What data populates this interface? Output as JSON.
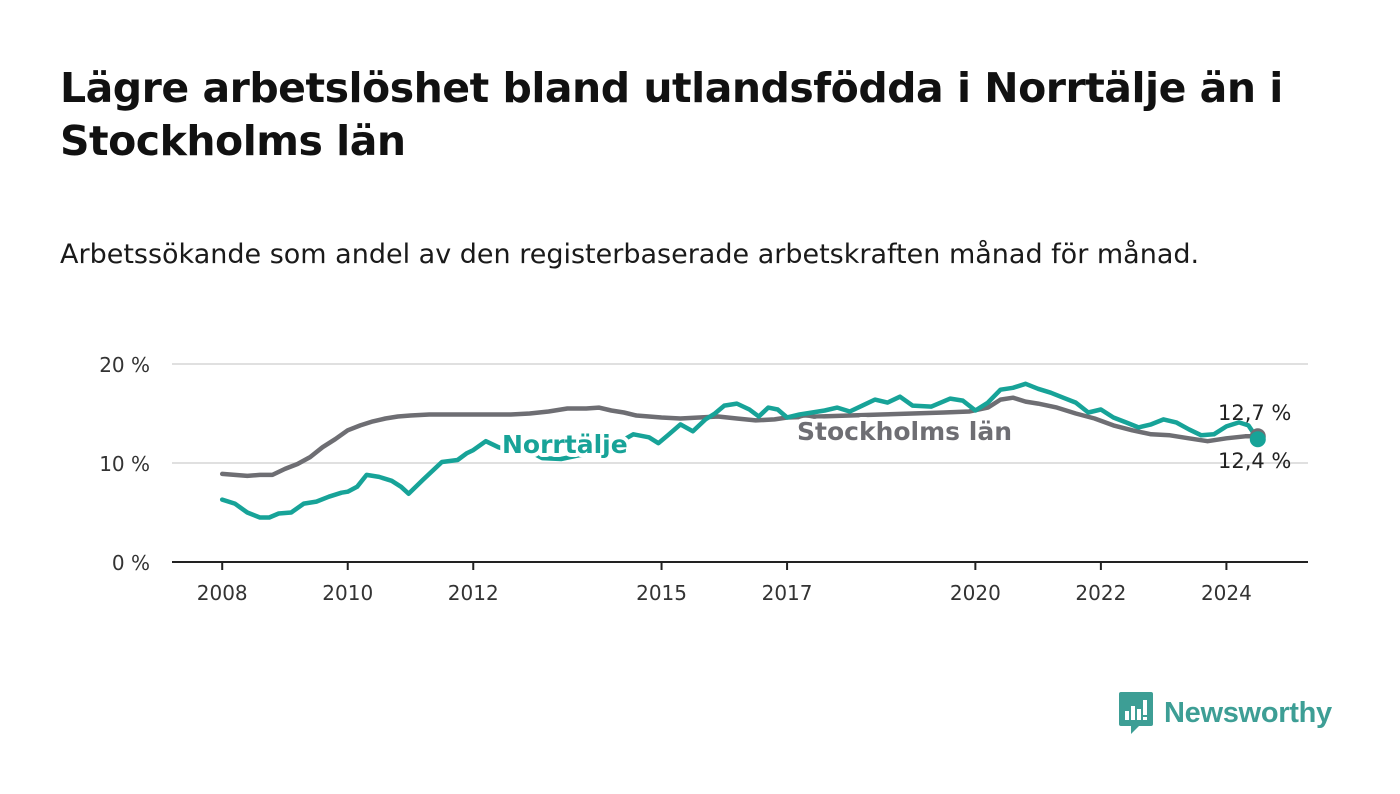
{
  "title": "Lägre arbetslöshet bland utlandsfödda i Norrtälje än i Stockholms län",
  "subtitle": "Arbetssökande som andel av den registerbaserade arbetskraften månad för månad.",
  "brand": {
    "name": "Newsworthy",
    "color": "#3d9e95"
  },
  "colors": {
    "norrtalje": "#17a398",
    "stockholm": "#6e6e73",
    "grid": "#d6d6d6",
    "axis": "#222222"
  },
  "chart_data": {
    "type": "line",
    "title": "Lägre arbetslöshet bland utlandsfödda i Norrtälje än i Stockholms län",
    "subtitle": "Arbetssökande som andel av den registerbaserade arbetskraften månad för månad.",
    "xlabel": "",
    "ylabel": "",
    "ylim": [
      0,
      20
    ],
    "xlim": [
      2007.2,
      2025.3
    ],
    "y_ticks": [
      {
        "value": 0,
        "label": "0 %"
      },
      {
        "value": 10,
        "label": "10 %"
      },
      {
        "value": 20,
        "label": "20 %"
      }
    ],
    "x_ticks": [
      {
        "value": 2008,
        "label": "2008"
      },
      {
        "value": 2010,
        "label": "2010"
      },
      {
        "value": 2012,
        "label": "2012"
      },
      {
        "value": 2015,
        "label": "2015"
      },
      {
        "value": 2017,
        "label": "2017"
      },
      {
        "value": 2020,
        "label": "2020"
      },
      {
        "value": 2022,
        "label": "2022"
      },
      {
        "value": 2024,
        "label": "2024"
      }
    ],
    "grid": true,
    "series": [
      {
        "name": "Norrtälje",
        "color": "#17a398",
        "end_label": "12,4 %",
        "points": [
          [
            2008.0,
            6.3
          ],
          [
            2008.2,
            5.9
          ],
          [
            2008.4,
            5.0
          ],
          [
            2008.6,
            4.5
          ],
          [
            2008.75,
            4.5
          ],
          [
            2008.9,
            4.9
          ],
          [
            2009.1,
            5.0
          ],
          [
            2009.3,
            5.9
          ],
          [
            2009.5,
            6.1
          ],
          [
            2009.7,
            6.6
          ],
          [
            2009.9,
            7.0
          ],
          [
            2010.0,
            7.1
          ],
          [
            2010.15,
            7.6
          ],
          [
            2010.3,
            8.8
          ],
          [
            2010.5,
            8.6
          ],
          [
            2010.7,
            8.2
          ],
          [
            2010.85,
            7.6
          ],
          [
            2010.97,
            6.9
          ],
          [
            2011.2,
            8.3
          ],
          [
            2011.5,
            10.1
          ],
          [
            2011.75,
            10.3
          ],
          [
            2011.9,
            11.0
          ],
          [
            2012.0,
            11.3
          ],
          [
            2012.2,
            12.2
          ],
          [
            2012.4,
            11.6
          ],
          [
            2012.6,
            11.2
          ],
          [
            2012.8,
            11.3
          ],
          [
            2012.95,
            11.0
          ],
          [
            2013.1,
            10.5
          ],
          [
            2013.4,
            10.4
          ],
          [
            2013.7,
            10.8
          ],
          [
            2014.0,
            11.1
          ],
          [
            2014.3,
            12.0
          ],
          [
            2014.55,
            12.9
          ],
          [
            2014.8,
            12.6
          ],
          [
            2014.95,
            12.0
          ],
          [
            2015.1,
            12.8
          ],
          [
            2015.3,
            13.9
          ],
          [
            2015.5,
            13.2
          ],
          [
            2015.7,
            14.4
          ],
          [
            2015.85,
            15.0
          ],
          [
            2016.0,
            15.8
          ],
          [
            2016.2,
            16.0
          ],
          [
            2016.4,
            15.4
          ],
          [
            2016.55,
            14.7
          ],
          [
            2016.7,
            15.6
          ],
          [
            2016.85,
            15.4
          ],
          [
            2017.0,
            14.6
          ],
          [
            2017.2,
            14.9
          ],
          [
            2017.4,
            15.1
          ],
          [
            2017.6,
            15.3
          ],
          [
            2017.8,
            15.6
          ],
          [
            2018.0,
            15.2
          ],
          [
            2018.2,
            15.8
          ],
          [
            2018.4,
            16.4
          ],
          [
            2018.6,
            16.1
          ],
          [
            2018.8,
            16.7
          ],
          [
            2019.0,
            15.8
          ],
          [
            2019.3,
            15.7
          ],
          [
            2019.6,
            16.5
          ],
          [
            2019.8,
            16.3
          ],
          [
            2020.0,
            15.3
          ],
          [
            2020.2,
            16.1
          ],
          [
            2020.4,
            17.4
          ],
          [
            2020.6,
            17.6
          ],
          [
            2020.8,
            18.0
          ],
          [
            2021.0,
            17.5
          ],
          [
            2021.2,
            17.1
          ],
          [
            2021.4,
            16.6
          ],
          [
            2021.6,
            16.1
          ],
          [
            2021.8,
            15.1
          ],
          [
            2022.0,
            15.4
          ],
          [
            2022.2,
            14.6
          ],
          [
            2022.4,
            14.1
          ],
          [
            2022.6,
            13.6
          ],
          [
            2022.8,
            13.9
          ],
          [
            2023.0,
            14.4
          ],
          [
            2023.2,
            14.1
          ],
          [
            2023.4,
            13.4
          ],
          [
            2023.6,
            12.8
          ],
          [
            2023.8,
            12.9
          ],
          [
            2024.0,
            13.7
          ],
          [
            2024.2,
            14.1
          ],
          [
            2024.35,
            13.8
          ],
          [
            2024.5,
            12.4
          ]
        ]
      },
      {
        "name": "Stockholms län",
        "color": "#6e6e73",
        "end_label": "12,7 %",
        "points": [
          [
            2008.0,
            8.9
          ],
          [
            2008.2,
            8.8
          ],
          [
            2008.4,
            8.7
          ],
          [
            2008.6,
            8.8
          ],
          [
            2008.8,
            8.8
          ],
          [
            2009.0,
            9.4
          ],
          [
            2009.2,
            9.9
          ],
          [
            2009.4,
            10.6
          ],
          [
            2009.6,
            11.6
          ],
          [
            2009.8,
            12.4
          ],
          [
            2010.0,
            13.3
          ],
          [
            2010.2,
            13.8
          ],
          [
            2010.4,
            14.2
          ],
          [
            2010.6,
            14.5
          ],
          [
            2010.8,
            14.7
          ],
          [
            2011.0,
            14.8
          ],
          [
            2011.3,
            14.9
          ],
          [
            2011.6,
            14.9
          ],
          [
            2011.9,
            14.9
          ],
          [
            2012.0,
            14.9
          ],
          [
            2012.3,
            14.9
          ],
          [
            2012.6,
            14.9
          ],
          [
            2012.9,
            15.0
          ],
          [
            2013.2,
            15.2
          ],
          [
            2013.5,
            15.5
          ],
          [
            2013.8,
            15.5
          ],
          [
            2014.0,
            15.6
          ],
          [
            2014.2,
            15.3
          ],
          [
            2014.4,
            15.1
          ],
          [
            2014.6,
            14.8
          ],
          [
            2014.8,
            14.7
          ],
          [
            2015.0,
            14.6
          ],
          [
            2015.3,
            14.5
          ],
          [
            2015.6,
            14.6
          ],
          [
            2015.9,
            14.7
          ],
          [
            2016.2,
            14.5
          ],
          [
            2016.5,
            14.3
          ],
          [
            2016.8,
            14.4
          ],
          [
            2017.0,
            14.6
          ],
          [
            2017.5,
            14.7
          ],
          [
            2018.0,
            14.8
          ],
          [
            2018.5,
            14.9
          ],
          [
            2019.0,
            15.0
          ],
          [
            2019.5,
            15.1
          ],
          [
            2019.9,
            15.2
          ],
          [
            2020.2,
            15.6
          ],
          [
            2020.4,
            16.4
          ],
          [
            2020.6,
            16.6
          ],
          [
            2020.8,
            16.2
          ],
          [
            2021.0,
            16.0
          ],
          [
            2021.3,
            15.6
          ],
          [
            2021.6,
            15.0
          ],
          [
            2021.9,
            14.5
          ],
          [
            2022.2,
            13.8
          ],
          [
            2022.5,
            13.3
          ],
          [
            2022.8,
            12.9
          ],
          [
            2023.1,
            12.8
          ],
          [
            2023.4,
            12.5
          ],
          [
            2023.7,
            12.2
          ],
          [
            2024.0,
            12.5
          ],
          [
            2024.3,
            12.7
          ],
          [
            2024.5,
            12.7
          ]
        ]
      }
    ]
  }
}
